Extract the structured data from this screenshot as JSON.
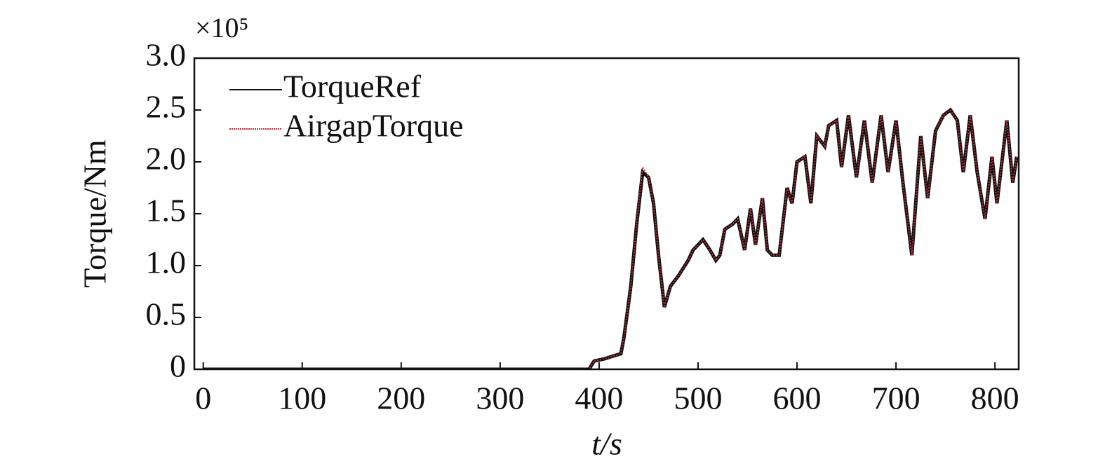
{
  "chart_data": {
    "type": "line",
    "ylabel": "Torque/Nm",
    "xlabel": "t/s",
    "y_multiplier": "×10⁵",
    "x": [
      0,
      390,
      393,
      395,
      405,
      415,
      422,
      425,
      432,
      438,
      444,
      450,
      455,
      460,
      466,
      472,
      480,
      490,
      495,
      500,
      505,
      512,
      518,
      522,
      527,
      535,
      540,
      547,
      553,
      558,
      565,
      570,
      575,
      582,
      590,
      595,
      600,
      608,
      614,
      620,
      628,
      632,
      640,
      645,
      652,
      660,
      668,
      676,
      685,
      692,
      700,
      707,
      716,
      725,
      732,
      740,
      748,
      755,
      762,
      768,
      775,
      782,
      790,
      797,
      802,
      812,
      818,
      822
    ],
    "series": [
      {
        "name": "TorqueRef",
        "color": "#111111",
        "values": [
          0,
          0,
          0.05,
          0.08,
          0.1,
          0.13,
          0.15,
          0.3,
          0.8,
          1.4,
          1.9,
          1.85,
          1.6,
          1.1,
          0.6,
          0.8,
          0.9,
          1.05,
          1.15,
          1.2,
          1.25,
          1.15,
          1.05,
          1.1,
          1.35,
          1.4,
          1.45,
          1.15,
          1.55,
          1.2,
          1.65,
          1.15,
          1.1,
          1.1,
          1.75,
          1.6,
          2.0,
          2.05,
          1.6,
          2.25,
          2.15,
          2.35,
          2.4,
          1.95,
          2.45,
          1.85,
          2.4,
          1.8,
          2.45,
          1.9,
          2.4,
          1.8,
          1.1,
          2.25,
          1.65,
          2.3,
          2.45,
          2.5,
          2.4,
          1.9,
          2.45,
          1.9,
          1.45,
          2.05,
          1.6,
          2.4,
          1.8,
          2.05
        ]
      },
      {
        "name": "AirgapTorque",
        "color": "#c0303a",
        "values": [
          0,
          0,
          0.05,
          0.08,
          0.1,
          0.13,
          0.15,
          0.3,
          0.8,
          1.4,
          1.95,
          1.85,
          1.6,
          1.1,
          0.6,
          0.8,
          0.9,
          1.05,
          1.15,
          1.2,
          1.25,
          1.15,
          1.05,
          1.1,
          1.35,
          1.4,
          1.45,
          1.15,
          1.55,
          1.2,
          1.65,
          1.15,
          1.1,
          1.1,
          1.75,
          1.6,
          2.0,
          2.05,
          1.6,
          2.25,
          2.15,
          2.35,
          2.4,
          1.95,
          2.45,
          1.85,
          2.4,
          1.8,
          2.45,
          1.9,
          2.4,
          1.8,
          1.1,
          2.25,
          1.65,
          2.3,
          2.45,
          2.5,
          2.4,
          1.9,
          2.45,
          1.9,
          1.45,
          2.05,
          1.6,
          2.4,
          1.8,
          2.05
        ]
      }
    ],
    "xlim": [
      -9,
      824
    ],
    "xticks": [
      0,
      100,
      200,
      300,
      400,
      500,
      600,
      700,
      800
    ],
    "ylim": [
      0,
      3
    ],
    "yticks": [
      0,
      0.5,
      {
        "value": 1,
        "label": "1.0"
      },
      1.5,
      {
        "value": 2,
        "label": "2.0"
      },
      2.5,
      {
        "value": 3,
        "label": "3.0"
      }
    ],
    "legend": "upper-left"
  }
}
